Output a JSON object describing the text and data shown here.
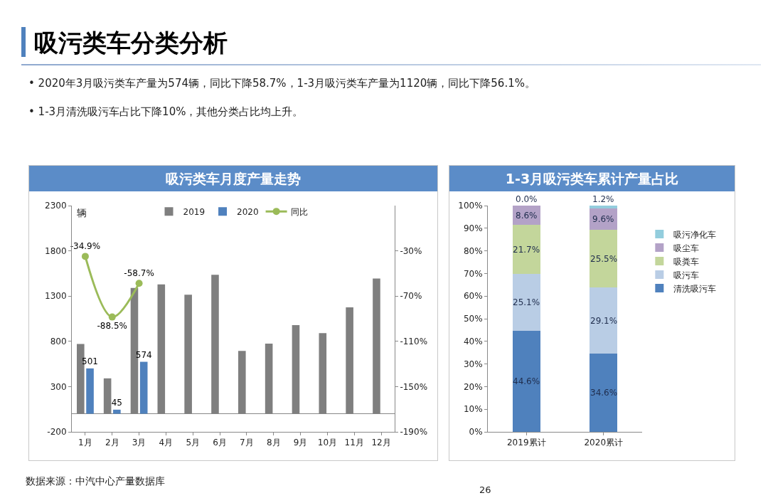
{
  "chart_data": [
    {
      "type": "bar",
      "title": "吸污类车月度产量走势",
      "ylabel": "辆",
      "annotations": [
        "吸污类车分类分析",
        "• 2020年3月吸污类车产量为574辆，同比下降58.7%，1-3月吸污类车产量为1120辆，同比下降56.1%。",
        "• 1-3月清洗吸污车占比下降10%，其他分类占比均上升。",
        "数据来源：中汽中心产量数据库",
        "26"
      ],
      "categories": [
        "1月",
        "2月",
        "3月",
        "4月",
        "5月",
        "6月",
        "7月",
        "8月",
        "9月",
        "10月",
        "11月",
        "12月"
      ],
      "series": [
        {
          "name": "2019",
          "color": "#7f7f7f",
          "values": [
            770,
            391,
            1390,
            1430,
            1315,
            1535,
            695,
            775,
            980,
            890,
            1175,
            1495
          ]
        },
        {
          "name": "2020",
          "color": "#4f81bd",
          "values": [
            501,
            45,
            574,
            null,
            null,
            null,
            null,
            null,
            null,
            null,
            null,
            null
          ],
          "value_labels": [
            "501",
            "45",
            "574",
            null,
            null,
            null,
            null,
            null,
            null,
            null,
            null,
            null
          ]
        },
        {
          "name": "同比",
          "type": "line",
          "axis": "y2",
          "marker": "circle",
          "color": "#9bbb59",
          "values": [
            -34.9,
            -88.5,
            -58.7,
            null,
            null,
            null,
            null,
            null,
            null,
            null,
            null,
            null
          ],
          "value_labels": [
            "-34.9%",
            "-88.5%",
            "-58.7%",
            null,
            null,
            null,
            null,
            null,
            null,
            null,
            null,
            null
          ]
        }
      ],
      "ylim": [
        -200,
        2300
      ],
      "yticks": [
        -200,
        300,
        800,
        1300,
        1800,
        2300
      ],
      "y2lim": [
        -190,
        10
      ],
      "y2ticks": [
        {
          "value": -190,
          "label": "-190%"
        },
        {
          "value": -150,
          "label": "-150%"
        },
        {
          "value": -110,
          "label": "-110%"
        },
        {
          "value": -70,
          "label": "-70%"
        },
        {
          "value": -30,
          "label": "-30%"
        }
      ],
      "grid": false,
      "legend": "top"
    },
    {
      "type": "bar",
      "title": "1-3月吸污类车累计产量占比",
      "stacked": true,
      "categories": [
        "2019累计",
        "2020累计"
      ],
      "series": [
        {
          "name": "清洗吸污车",
          "color": "#4f81bd",
          "values": [
            44.6,
            34.6
          ],
          "value_labels": [
            "44.6%",
            "34.6%"
          ]
        },
        {
          "name": "吸污车",
          "color": "#b9cde5",
          "values": [
            25.1,
            29.1
          ],
          "value_labels": [
            "25.1%",
            "29.1%"
          ]
        },
        {
          "name": "吸粪车",
          "color": "#c3d69b",
          "values": [
            21.7,
            25.5
          ],
          "value_labels": [
            "21.7%",
            "25.5%"
          ]
        },
        {
          "name": "吸尘车",
          "color": "#b3a2c7",
          "values": [
            8.6,
            9.6
          ],
          "value_labels": [
            "8.6%",
            "9.6%"
          ]
        },
        {
          "name": "吸污净化车",
          "color": "#93cddd",
          "values": [
            0.0,
            1.2
          ],
          "value_labels": [
            "0.0%",
            "1.2%"
          ]
        }
      ],
      "ylim": [
        0,
        100
      ],
      "yticks": [
        {
          "value": 0,
          "label": "0%"
        },
        {
          "value": 10,
          "label": "10%"
        },
        {
          "value": 20,
          "label": "20%"
        },
        {
          "value": 30,
          "label": "30%"
        },
        {
          "value": 40,
          "label": "40%"
        },
        {
          "value": 50,
          "label": "50%"
        },
        {
          "value": 60,
          "label": "60%"
        },
        {
          "value": 70,
          "label": "70%"
        },
        {
          "value": 80,
          "label": "80%"
        },
        {
          "value": 90,
          "label": "90%"
        },
        {
          "value": 100,
          "label": "100%"
        }
      ],
      "grid": false,
      "legend": "right"
    }
  ]
}
